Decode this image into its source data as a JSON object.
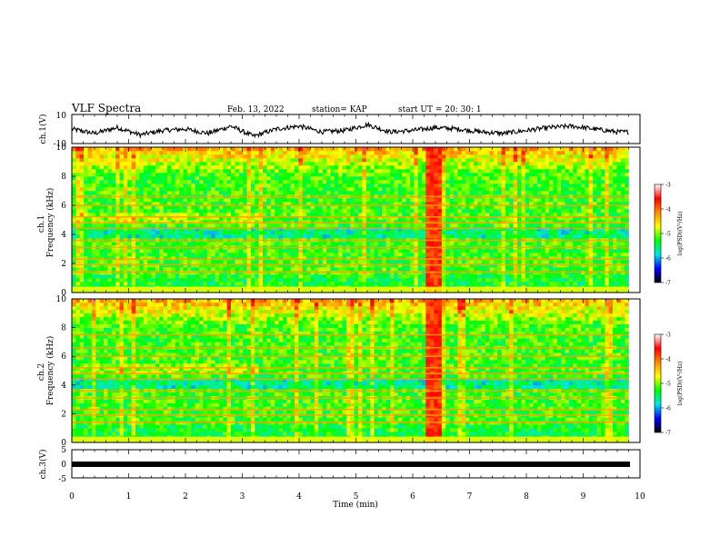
{
  "header": {
    "title": "VLF Spectra",
    "date": "Feb. 13, 2022",
    "station": "station= KAP",
    "start": "start  UT =   20: 30: 1"
  },
  "colorbar": {
    "label": "log(PSD)(V²/Hz)",
    "ticks": [
      "-3",
      "-4",
      "-5",
      "-6",
      "-7"
    ],
    "colors": [
      "#ffffff",
      "#ff0000",
      "#ff8c00",
      "#ffff00",
      "#00ff00",
      "#00e5e5",
      "#0000ff",
      "#000000"
    ]
  },
  "chart_data": [
    {
      "type": "line",
      "ylabel": "ch.1(V)",
      "ylim": [
        -10,
        10
      ],
      "ytick_labels": [
        "10",
        "-10"
      ],
      "xlim": [
        0,
        9.8
      ],
      "description_values": [
        0.0,
        0.4,
        0.8,
        1.2,
        1.6,
        2.0,
        2.4,
        2.8,
        3.2,
        3.6,
        4.0,
        4.4,
        4.8,
        5.2,
        5.6,
        6.0,
        6.4,
        6.8,
        7.2,
        7.6,
        8.0,
        8.4,
        8.8,
        9.2,
        9.6
      ],
      "y": [
        0,
        -3,
        1,
        -4,
        -1,
        0,
        -3,
        2,
        -5,
        0,
        2,
        -2,
        -1,
        3,
        -2,
        -1,
        1,
        0,
        -2,
        -3,
        -1,
        1,
        2,
        0,
        -2
      ]
    },
    {
      "type": "heatmap",
      "ylabel": "ch.1\nFrequency (kHz)",
      "ylim": [
        0,
        10
      ],
      "ytick_labels": [
        "0",
        "2",
        "4",
        "6",
        "8",
        "10"
      ],
      "xlim": [
        0,
        9.8
      ],
      "color_range": [
        -7,
        -3
      ],
      "transmitter_lines_khz": [
        0.3,
        1.4,
        1.9,
        2.3,
        3.1,
        3.6,
        4.4,
        4.8,
        5.2,
        6.0,
        6.6
      ],
      "burst_interval_min": [
        6.2,
        6.5
      ]
    },
    {
      "type": "heatmap",
      "ylabel": "ch.2\nFrequency (kHz)",
      "ylim": [
        0,
        10
      ],
      "ytick_labels": [
        "0",
        "2",
        "4",
        "6",
        "8",
        "10"
      ],
      "xlim": [
        0,
        9.8
      ],
      "color_range": [
        -7,
        -3
      ],
      "transmitter_lines_khz": [
        0.3,
        1.4,
        1.9,
        2.3,
        3.1,
        3.6,
        4.4,
        4.8,
        5.2,
        6.0,
        6.6,
        7.5
      ],
      "burst_interval_min": [
        6.2,
        6.5
      ]
    },
    {
      "type": "line",
      "ylabel": "ch.3(V)",
      "ylim": [
        -5,
        5
      ],
      "ytick_labels": [
        "5",
        "0",
        "-5"
      ],
      "xlim": [
        0,
        9.8
      ],
      "x": [
        0,
        9.8
      ],
      "y": [
        0,
        0
      ]
    }
  ],
  "xaxis": {
    "label": "Time (min)",
    "range": [
      0,
      10
    ],
    "tick_labels": [
      "0",
      "1",
      "2",
      "3",
      "4",
      "5",
      "6",
      "7",
      "8",
      "9",
      "10"
    ]
  }
}
